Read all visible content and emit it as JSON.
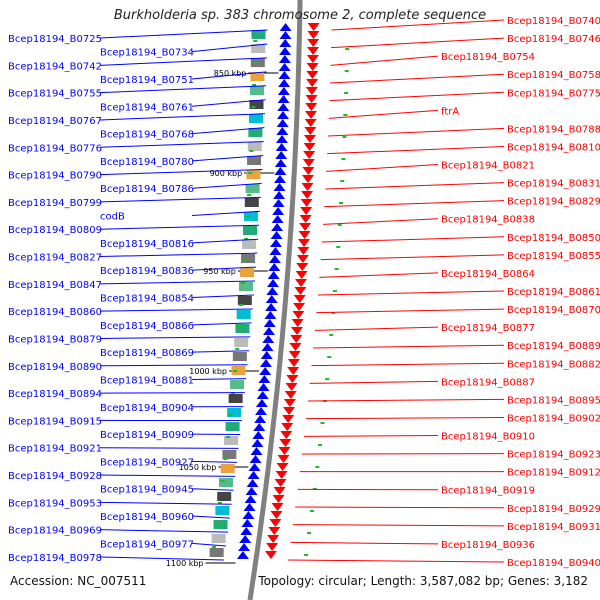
{
  "title": "Burkholderia sp. 383 chromosome 2, complete sequence",
  "accession_text": "Accession: NC_007511",
  "topology_text": "Topology: circular; Length: 3,587,082 bp; Genes: 3,182",
  "colors": {
    "forward": "#ff0000",
    "reverse": "#0000ff",
    "backbone": "#808080",
    "tick": "#000000",
    "feature_green": "#22bb22"
  },
  "scale_labels": [
    "850 kbp",
    "900 kbp",
    "950 kbp",
    "1000 kbp",
    "1050 kbp",
    "1100 kbp"
  ],
  "left_labels": [
    "Bcep18194_B0725",
    "Bcep18194_B0734",
    "Bcep18194_B0742",
    "Bcep18194_B0751",
    "Bcep18194_B0755",
    "Bcep18194_B0761",
    "Bcep18194_B0767",
    "Bcep18194_B0768",
    "Bcep18194_B0776",
    "Bcep18194_B0780",
    "Bcep18194_B0790",
    "Bcep18194_B0786",
    "Bcep18194_B0799",
    "codB",
    "Bcep18194_B0809",
    "Bcep18194_B0816",
    "Bcep18194_B0827",
    "Bcep18194_B0836",
    "Bcep18194_B0847",
    "Bcep18194_B0854",
    "Bcep18194_B0860",
    "Bcep18194_B0866",
    "Bcep18194_B0879",
    "Bcep18194_B0869",
    "Bcep18194_B0890",
    "Bcep18194_B0881",
    "Bcep18194_B0894",
    "Bcep18194_B0904",
    "Bcep18194_B0915",
    "Bcep18194_B0909",
    "Bcep18194_B0921",
    "Bcep18194_B0927",
    "Bcep18194_B0928",
    "Bcep18194_B0945",
    "Bcep18194_B0953",
    "Bcep18194_B0960",
    "Bcep18194_B0969",
    "Bcep18194_B0977",
    "Bcep18194_B0978"
  ],
  "right_labels": [
    "Bcep18194_B0740",
    "Bcep18194_B0746",
    "Bcep18194_B0754",
    "Bcep18194_B0758",
    "Bcep18194_B0775",
    "ftrA",
    "Bcep18194_B0788",
    "Bcep18194_B0810",
    "Bcep18194_B0821",
    "Bcep18194_B0831",
    "Bcep18194_B0829",
    "Bcep18194_B0838",
    "Bcep18194_B0850",
    "Bcep18194_B0855",
    "Bcep18194_B0864",
    "Bcep18194_B0861",
    "Bcep18194_B0870",
    "Bcep18194_B0877",
    "Bcep18194_B0889",
    "Bcep18194_B0882",
    "Bcep18194_B0887",
    "Bcep18194_B0895",
    "Bcep18194_B0902",
    "Bcep18194_B0910",
    "Bcep18194_B0923",
    "Bcep18194_B0912",
    "Bcep18194_B0919",
    "Bcep18194_B0929",
    "Bcep18194_B0931",
    "Bcep18194_B0936",
    "Bcep18194_B0940"
  ]
}
